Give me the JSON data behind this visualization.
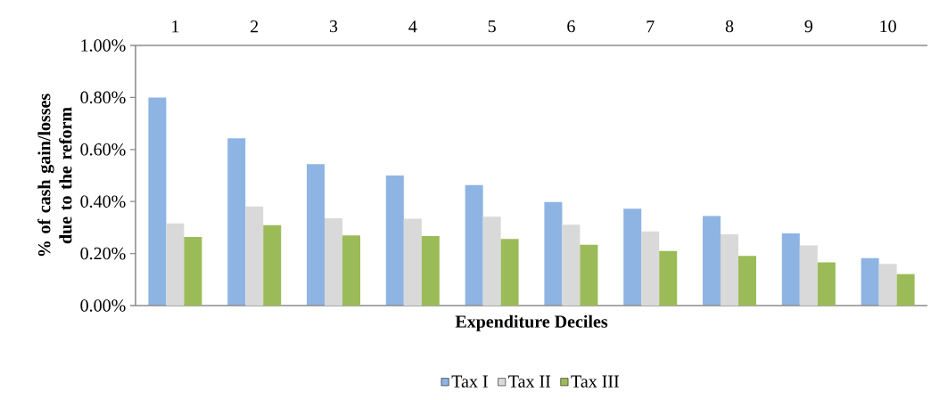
{
  "chart_data": {
    "type": "bar",
    "xlabel": "Expenditure Deciles",
    "ylabel": "% of cash gain/losses due to the reform",
    "categories": [
      "1",
      "2",
      "3",
      "4",
      "5",
      "6",
      "7",
      "8",
      "9",
      "10"
    ],
    "series": [
      {
        "name": "Tax I",
        "color": "#8eb4e3",
        "values": [
          0.8,
          0.643,
          0.544,
          0.5,
          0.463,
          0.398,
          0.372,
          0.344,
          0.277,
          0.182
        ]
      },
      {
        "name": "Tax II",
        "color": "#d9d9d9",
        "values": [
          0.316,
          0.381,
          0.336,
          0.334,
          0.342,
          0.311,
          0.285,
          0.274,
          0.231,
          0.16
        ]
      },
      {
        "name": "Tax III",
        "color": "#9bbb59",
        "values": [
          0.264,
          0.309,
          0.27,
          0.267,
          0.256,
          0.234,
          0.21,
          0.191,
          0.166,
          0.121
        ]
      }
    ],
    "ylim": [
      0,
      1.0
    ],
    "yticks": [
      {
        "value": 0,
        "label": "0.00%"
      },
      {
        "value": 0.2,
        "label": "0.20%"
      },
      {
        "value": 0.4,
        "label": "0.40%"
      },
      {
        "value": 0.6,
        "label": "0.60%"
      },
      {
        "value": 0.8,
        "label": "0.80%"
      },
      {
        "value": 1.0,
        "label": "1.00%"
      }
    ],
    "grid": false,
    "legend": "bottom"
  }
}
